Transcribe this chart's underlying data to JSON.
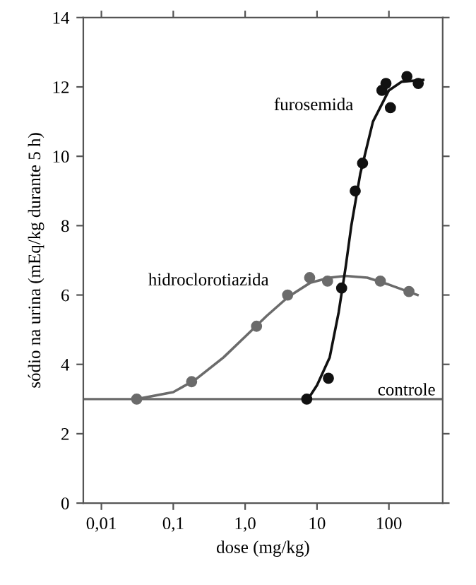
{
  "chart_data": {
    "type": "scatter",
    "log": "x",
    "xlabel": "dose (mg/kg)",
    "ylabel": "sódio na urina (mEq/kg durante 5 h)",
    "xlim": [
      0.0056,
      560
    ],
    "ylim": [
      0,
      14
    ],
    "xticks": [
      {
        "value": 0.01,
        "label": "0,01"
      },
      {
        "value": 0.1,
        "label": "0,1"
      },
      {
        "value": 1,
        "label": "1,0"
      },
      {
        "value": 10,
        "label": "10"
      },
      {
        "value": 100,
        "label": "100"
      }
    ],
    "yticks": [
      0,
      2,
      4,
      6,
      8,
      10,
      12,
      14
    ],
    "grid": false,
    "marker": "circle",
    "series": [
      {
        "color": "#6b6b6b",
        "x": [
          0.031,
          0.18,
          1.44,
          3.9,
          7.9,
          14,
          76,
          190
        ],
        "values": [
          3.0,
          3.5,
          5.1,
          6.0,
          6.5,
          6.4,
          6.4,
          6.1
        ]
      },
      {
        "type": "line",
        "name": "hidroclorotiazida",
        "marker": "none",
        "color": "#6b6b6b",
        "x": [
          0.031,
          0.1,
          0.2,
          0.5,
          1,
          2,
          4,
          8,
          15,
          25,
          50,
          100,
          250
        ],
        "values": [
          3.0,
          3.2,
          3.55,
          4.2,
          4.8,
          5.4,
          5.95,
          6.35,
          6.5,
          6.55,
          6.5,
          6.3,
          6.0
        ]
      },
      {
        "color": "#111111",
        "x": [
          7.2,
          14.4,
          22,
          34,
          43,
          80,
          91,
          105,
          178,
          256
        ],
        "values": [
          3.0,
          3.6,
          6.2,
          9.0,
          9.8,
          11.9,
          12.1,
          11.4,
          12.3,
          12.1
        ]
      },
      {
        "type": "line",
        "name": "furosemida",
        "marker": "none",
        "color": "#111111",
        "x": [
          7.5,
          10,
          15,
          20,
          25,
          30,
          40,
          60,
          100,
          150,
          300
        ],
        "values": [
          3.0,
          3.4,
          4.2,
          5.5,
          6.8,
          8.0,
          9.5,
          11.0,
          11.9,
          12.15,
          12.2
        ]
      }
    ],
    "ref_lines": [
      {
        "axis": "y",
        "value": 3,
        "label": "controle",
        "color": "#6b6b6b"
      }
    ]
  }
}
